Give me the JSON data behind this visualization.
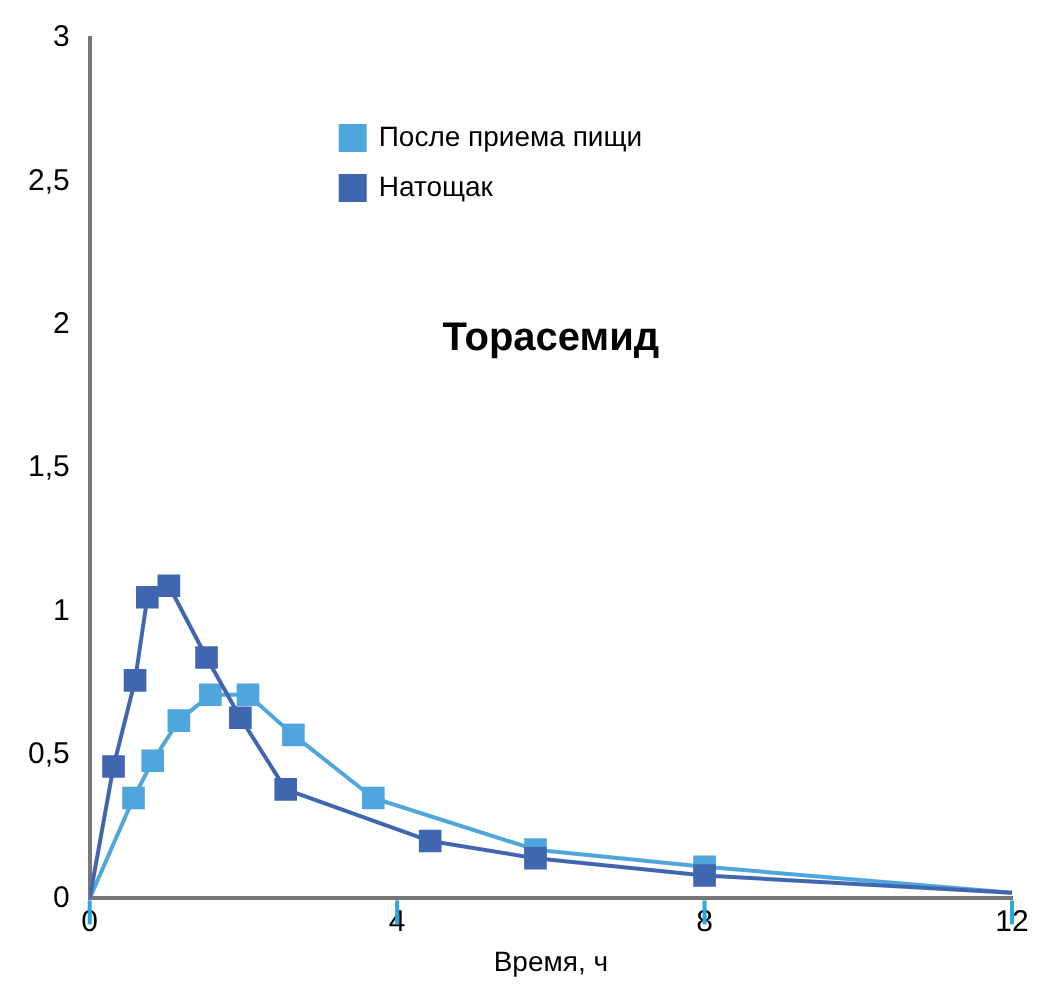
{
  "chart_data": {
    "type": "line",
    "title": "Торасемид",
    "xlabel": "Время, ч",
    "xlim": [
      0,
      12
    ],
    "xticks": [
      0,
      4,
      8,
      12
    ],
    "ylim": [
      0,
      3
    ],
    "yticks": [
      0,
      {
        "value": 0.5,
        "label": "0,5"
      },
      1,
      {
        "value": 1.5,
        "label": "1,5"
      },
      2,
      {
        "value": 2.5,
        "label": "2,5"
      },
      3
    ],
    "grid": false,
    "legend": "top",
    "marker": "square",
    "line_style": "solid",
    "series": [
      {
        "name": "После приема пищи",
        "color": "#4ea6dc",
        "x": [
          0,
          0.57,
          0.82,
          1.16,
          1.57,
          2.06,
          2.65,
          3.69,
          5.8,
          8,
          12
        ],
        "values": [
          0,
          0.35,
          0.48,
          0.62,
          0.71,
          0.71,
          0.57,
          0.35,
          0.17,
          0.11,
          0.02
        ]
      },
      {
        "name": "Натощак",
        "color": "#4166b0",
        "x": [
          0,
          0.31,
          0.59,
          0.75,
          1.03,
          1.52,
          1.96,
          2.55,
          4.43,
          5.8,
          8,
          12
        ],
        "values": [
          0,
          0.46,
          0.76,
          1.05,
          1.09,
          0.84,
          0.63,
          0.38,
          0.2,
          0.14,
          0.08,
          0.02
        ]
      }
    ]
  }
}
